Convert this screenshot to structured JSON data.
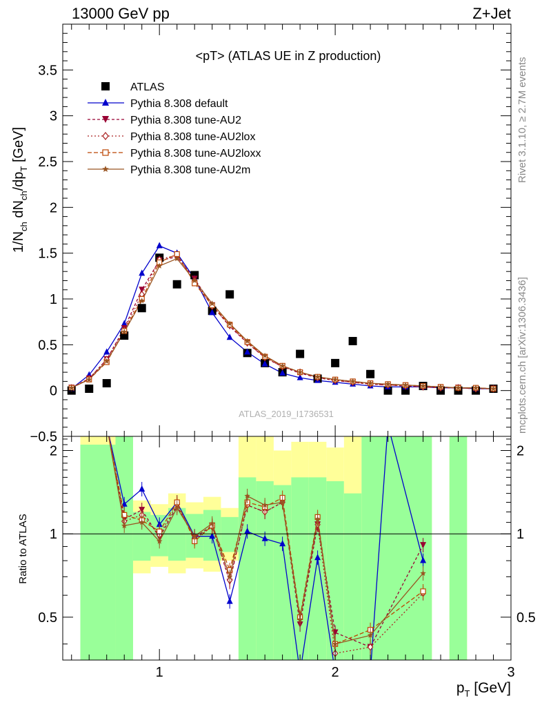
{
  "header": {
    "left_title": "13000 GeV pp",
    "right_title": "Z+Jet"
  },
  "side_labels": {
    "rivet": "Rivet 3.1.10, ≥ 2.7M events",
    "mcplots": "mcplots.cern.ch [arXiv:1306.3436]"
  },
  "colors": {
    "atlas": "#000000",
    "default": "#0000cc",
    "au2": "#990033",
    "au2lox": "#aa2222",
    "au2loxx": "#bb4400",
    "au2m": "#995522",
    "band_green": "#99ff99",
    "band_yellow": "#ffff99"
  },
  "chart_data": [
    {
      "type": "line",
      "title": "<pT> (ATLAS UE in Z production)",
      "watermark": "ATLAS_2019_I1736531",
      "xlabel": "p_T [GeV]",
      "ylabel": "1/N_ch dN_ch/dp_T [GeV]",
      "xlim": [
        0.45,
        3.0
      ],
      "ylim": [
        -0.5,
        4.0
      ],
      "y_ticks": [
        "−0.5",
        "0",
        "0.5",
        "1",
        "1.5",
        "2",
        "2.5",
        "3",
        "3.5"
      ],
      "x": [
        0.5,
        0.6,
        0.7,
        0.8,
        0.9,
        1.0,
        1.1,
        1.2,
        1.3,
        1.4,
        1.5,
        1.6,
        1.7,
        1.8,
        1.9,
        2.0,
        2.1,
        2.2,
        2.3,
        2.4,
        2.5,
        2.6,
        2.7,
        2.8,
        2.9
      ],
      "legend_position": "top-left",
      "series": [
        {
          "name": "ATLAS",
          "marker": "square",
          "values": [
            0.0,
            0.02,
            0.08,
            0.6,
            0.9,
            1.45,
            1.16,
            1.26,
            0.87,
            1.05,
            0.41,
            0.3,
            0.2,
            0.4,
            0.13,
            0.3,
            0.54,
            0.18,
            0.0,
            0.0,
            0.05,
            0.0,
            0.0,
            0.0,
            0.02
          ]
        },
        {
          "name": "Pythia 8.308 default",
          "marker": "triangle-up",
          "values": [
            0.02,
            0.17,
            0.42,
            0.73,
            1.28,
            1.58,
            1.5,
            1.22,
            0.85,
            0.58,
            0.42,
            0.29,
            0.19,
            0.14,
            0.11,
            0.09,
            0.07,
            0.05,
            0.04,
            0.04,
            0.04,
            0.03,
            0.03,
            0.02,
            0.02
          ]
        },
        {
          "name": "Pythia 8.308 tune-AU2",
          "marker": "triangle-down",
          "values": [
            0.03,
            0.13,
            0.34,
            0.68,
            1.1,
            1.42,
            1.46,
            1.22,
            0.93,
            0.7,
            0.52,
            0.36,
            0.26,
            0.19,
            0.14,
            0.11,
            0.09,
            0.07,
            0.06,
            0.05,
            0.04,
            0.03,
            0.03,
            0.02,
            0.02
          ]
        },
        {
          "name": "Pythia 8.308 tune-AU2lox",
          "marker": "diamond-open",
          "values": [
            0.03,
            0.13,
            0.34,
            0.66,
            1.05,
            1.43,
            1.48,
            1.2,
            0.92,
            0.71,
            0.52,
            0.36,
            0.26,
            0.2,
            0.14,
            0.11,
            0.09,
            0.07,
            0.06,
            0.05,
            0.04,
            0.03,
            0.03,
            0.02,
            0.02
          ]
        },
        {
          "name": "Pythia 8.308 tune-AU2loxx",
          "marker": "square-open",
          "values": [
            0.03,
            0.12,
            0.31,
            0.65,
            1.0,
            1.4,
            1.49,
            1.17,
            0.93,
            0.72,
            0.53,
            0.37,
            0.27,
            0.2,
            0.15,
            0.12,
            0.1,
            0.08,
            0.07,
            0.06,
            0.05,
            0.04,
            0.03,
            0.03,
            0.02
          ]
        },
        {
          "name": "Pythia 8.308 tune-AU2m",
          "marker": "star",
          "values": [
            0.03,
            0.12,
            0.32,
            0.64,
            0.98,
            1.36,
            1.44,
            1.2,
            0.95,
            0.73,
            0.54,
            0.38,
            0.27,
            0.2,
            0.15,
            0.12,
            0.1,
            0.08,
            0.07,
            0.06,
            0.05,
            0.04,
            0.03,
            0.03,
            0.02
          ]
        }
      ]
    },
    {
      "type": "line",
      "title": "",
      "xlabel": "p_T [GeV]",
      "ylabel": "Ratio to ATLAS",
      "xlim": [
        0.45,
        3.0
      ],
      "ylim": [
        0.35,
        2.25
      ],
      "y_ticks": [
        "0.5",
        "1",
        "2"
      ],
      "x_ticks": [
        "1",
        "2",
        "3"
      ],
      "reference_line": 1.0,
      "bands": [
        {
          "x": [
            0.55,
            0.75
          ],
          "yellow": [
            0.35,
            2.25
          ],
          "green": [
            0.35,
            2.1
          ]
        },
        {
          "x": [
            0.75,
            0.85
          ],
          "yellow": [
            0.35,
            2.25
          ],
          "green": [
            0.35,
            2.25
          ]
        },
        {
          "x": [
            0.85,
            0.95
          ],
          "yellow": [
            0.72,
            1.32
          ],
          "green": [
            0.8,
            1.2
          ]
        },
        {
          "x": [
            0.95,
            1.05
          ],
          "yellow": [
            0.76,
            1.28
          ],
          "green": [
            0.83,
            1.17
          ]
        },
        {
          "x": [
            1.05,
            1.15
          ],
          "yellow": [
            0.72,
            1.4
          ],
          "green": [
            0.8,
            1.24
          ]
        },
        {
          "x": [
            1.15,
            1.25
          ],
          "yellow": [
            0.75,
            1.3
          ],
          "green": [
            0.82,
            1.18
          ]
        },
        {
          "x": [
            1.25,
            1.35
          ],
          "yellow": [
            0.73,
            1.36
          ],
          "green": [
            0.8,
            1.22
          ]
        },
        {
          "x": [
            1.35,
            1.45
          ],
          "yellow": [
            0.8,
            1.24
          ],
          "green": [
            0.86,
            1.15
          ]
        },
        {
          "x": [
            1.45,
            1.55
          ],
          "yellow": [
            0.35,
            2.25
          ],
          "green": [
            0.35,
            1.6
          ]
        },
        {
          "x": [
            1.55,
            1.65
          ],
          "yellow": [
            0.35,
            2.25
          ],
          "green": [
            0.35,
            1.55
          ]
        },
        {
          "x": [
            1.65,
            1.75
          ],
          "yellow": [
            0.35,
            2.0
          ],
          "green": [
            0.35,
            1.5
          ]
        },
        {
          "x": [
            1.75,
            1.85
          ],
          "yellow": [
            0.35,
            2.15
          ],
          "green": [
            0.35,
            1.6
          ]
        },
        {
          "x": [
            1.85,
            1.95
          ],
          "yellow": [
            0.35,
            2.15
          ],
          "green": [
            0.35,
            1.6
          ]
        },
        {
          "x": [
            1.95,
            2.05
          ],
          "yellow": [
            0.35,
            2.05
          ],
          "green": [
            0.35,
            1.55
          ]
        },
        {
          "x": [
            2.05,
            2.15
          ],
          "yellow": [
            0.35,
            2.25
          ],
          "green": [
            0.35,
            1.4
          ]
        },
        {
          "x": [
            2.15,
            2.55
          ],
          "yellow": [
            0.35,
            2.25
          ],
          "green": [
            0.35,
            2.25
          ]
        },
        {
          "x": [
            2.65,
            2.75
          ],
          "yellow": [
            0.35,
            2.25
          ],
          "green": [
            0.35,
            2.25
          ]
        }
      ],
      "series": [
        {
          "name": "Pythia 8.308 default",
          "x": [
            0.8,
            0.9,
            1.0,
            1.1,
            1.2,
            1.3,
            1.4,
            1.5,
            1.6,
            1.7,
            1.8,
            1.9,
            2.0,
            2.2,
            2.3,
            2.5
          ],
          "values": [
            1.28,
            1.45,
            1.08,
            1.3,
            0.98,
            0.98,
            0.57,
            1.02,
            0.96,
            0.92,
            0.3,
            0.82,
            0.3,
            0.3,
            3.0,
            0.8
          ]
        },
        {
          "name": "Pythia 8.308 tune-AU2",
          "x": [
            0.8,
            0.9,
            1.0,
            1.1,
            1.2,
            1.3,
            1.4,
            1.5,
            1.6,
            1.7,
            1.8,
            1.9,
            2.0,
            2.2,
            2.5
          ],
          "values": [
            1.13,
            1.22,
            0.97,
            1.26,
            0.97,
            1.07,
            0.67,
            1.27,
            1.2,
            1.3,
            0.47,
            1.08,
            0.44,
            0.39,
            0.91
          ]
        },
        {
          "name": "Pythia 8.308 tune-AU2lox",
          "x": [
            0.8,
            0.9,
            1.0,
            1.1,
            1.2,
            1.3,
            1.4,
            1.5,
            1.6,
            1.7,
            1.8,
            1.9,
            2.0,
            2.2,
            2.5
          ],
          "values": [
            1.11,
            1.17,
            0.99,
            1.28,
            0.96,
            1.06,
            0.68,
            1.27,
            1.2,
            1.3,
            0.5,
            1.08,
            0.37,
            0.39,
            0.61
          ]
        },
        {
          "name": "Pythia 8.308 tune-AU2loxx",
          "x": [
            0.8,
            0.9,
            1.0,
            1.1,
            1.2,
            1.3,
            1.4,
            1.5,
            1.6,
            1.7,
            1.8,
            1.9,
            2.0,
            2.2,
            2.5
          ],
          "values": [
            1.17,
            1.12,
            1.02,
            1.3,
            0.94,
            1.07,
            0.74,
            1.3,
            1.25,
            1.35,
            0.5,
            1.15,
            0.4,
            0.45,
            0.62
          ]
        },
        {
          "name": "Pythia 8.308 tune-AU2m",
          "x": [
            0.8,
            0.9,
            1.0,
            1.1,
            1.2,
            1.3,
            1.4,
            1.5,
            1.6,
            1.7,
            1.8,
            1.9,
            2.0,
            2.2,
            2.5
          ],
          "values": [
            1.07,
            1.1,
            0.94,
            1.24,
            0.98,
            1.09,
            0.7,
            1.37,
            1.27,
            1.3,
            0.49,
            1.13,
            0.4,
            0.43,
            0.72
          ]
        }
      ]
    }
  ]
}
